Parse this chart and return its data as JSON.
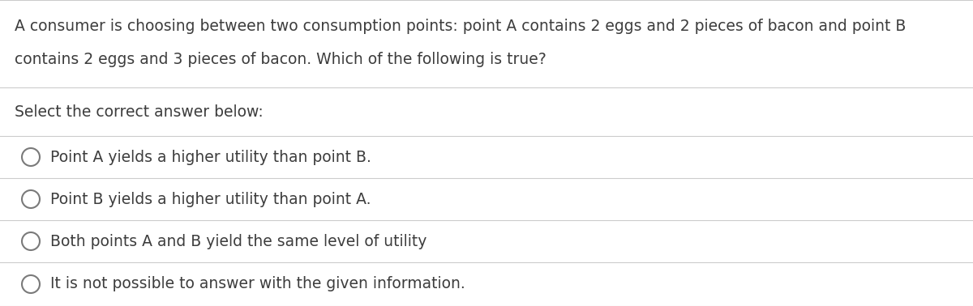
{
  "question_line1": "A consumer is choosing between two consumption points: point A contains 2 eggs and 2 pieces of bacon and point B",
  "question_line2": "contains 2 eggs and 3 pieces of bacon. Which of the following is true?",
  "prompt": "Select the correct answer below:",
  "options": [
    "Point A yields a higher utility than point B.",
    "Point B yields a higher utility than point A.",
    "Both points A and B yield the same level of utility",
    "It is not possible to answer with the given information."
  ],
  "bg_color": "#ffffff",
  "text_color": "#3d3d3d",
  "line_color": "#cccccc",
  "font_size": 13.5,
  "figsize": [
    12.0,
    3.78
  ],
  "dpi": 100
}
